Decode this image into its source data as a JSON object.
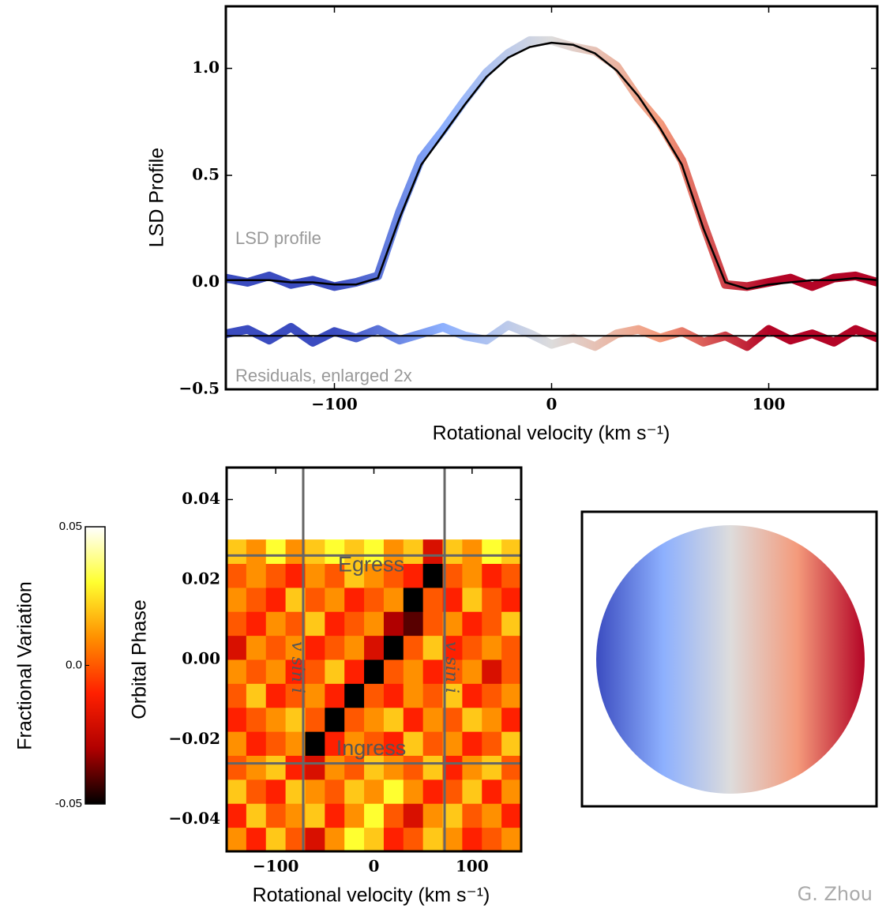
{
  "chart_data": [
    {
      "type": "line",
      "ylabel": "LSD Profile",
      "xlabel": "Rotational velocity (km s⁻¹)",
      "annotations": [
        "LSD profile",
        "Residuals, enlarged 2x"
      ],
      "x": [
        -150,
        -140,
        -130,
        -120,
        -110,
        -100,
        -90,
        -80,
        -70,
        -60,
        -50,
        -40,
        -30,
        -20,
        -10,
        0,
        10,
        20,
        30,
        40,
        50,
        60,
        70,
        80,
        90,
        100,
        110,
        120,
        130,
        140,
        150
      ],
      "series": [
        {
          "gradient": [
            "#3b4cc0",
            "#3b4cc0",
            "#8db0fe",
            "#dddcdc",
            "#f49a7b",
            "#b40426",
            "#b40426"
          ],
          "values": [
            0.02,
            0.0,
            0.03,
            -0.01,
            0.01,
            -0.02,
            0.0,
            0.03,
            0.33,
            0.58,
            0.71,
            0.85,
            0.98,
            1.07,
            1.13,
            1.13,
            1.1,
            1.08,
            1.01,
            0.86,
            0.74,
            0.57,
            0.27,
            -0.01,
            -0.02,
            0.0,
            0.02,
            -0.02,
            0.02,
            0.03,
            0.0
          ]
        },
        {
          "gradient": [
            "#3b4cc0",
            "#3b4cc0",
            "#8db0fe",
            "#dddcdc",
            "#f49a7b",
            "#b40426",
            "#b40426"
          ],
          "values": [
            -0.24,
            -0.22,
            -0.27,
            -0.21,
            -0.28,
            -0.23,
            -0.26,
            -0.22,
            -0.27,
            -0.24,
            -0.21,
            -0.25,
            -0.27,
            -0.2,
            -0.24,
            -0.29,
            -0.26,
            -0.3,
            -0.24,
            -0.22,
            -0.26,
            -0.23,
            -0.28,
            -0.25,
            -0.3,
            -0.22,
            -0.27,
            -0.24,
            -0.28,
            -0.22,
            -0.26
          ]
        },
        {
          "color": "#000000",
          "values": [
            0.01,
            0.01,
            0.01,
            0.0,
            0.0,
            -0.01,
            -0.01,
            0.02,
            0.3,
            0.55,
            0.69,
            0.83,
            0.96,
            1.05,
            1.1,
            1.12,
            1.11,
            1.07,
            0.99,
            0.87,
            0.72,
            0.55,
            0.25,
            0.0,
            -0.03,
            -0.01,
            0.0,
            0.01,
            0.01,
            0.02,
            0.01
          ]
        }
      ],
      "hline": -0.25,
      "xlim": [
        -150,
        150
      ],
      "ylim": [
        -0.5,
        1.29
      ],
      "xticks": [
        {
          "value": -100,
          "label": "−100"
        },
        0,
        100
      ],
      "yticks": [
        {
          "value": -0.5,
          "label": "−0.5"
        },
        {
          "value": 0,
          "label": "0.0"
        },
        {
          "value": 0.5,
          "label": "0.5"
        },
        {
          "value": 1,
          "label": "1.0"
        }
      ]
    },
    {
      "type": "heatmap",
      "ylabel": "Orbital Phase",
      "xlabel": "Rotational velocity (km s⁻¹)",
      "x_edges": [
        -150,
        -130,
        -110,
        -90,
        -70,
        -50,
        -30,
        -10,
        10,
        30,
        50,
        70,
        90,
        110,
        130,
        150
      ],
      "y_edges": [
        -0.048,
        -0.042,
        -0.036,
        -0.03,
        -0.024,
        -0.018,
        -0.012,
        -0.006,
        0.0,
        0.006,
        0.012,
        0.018,
        0.024,
        0.03
      ],
      "values": [
        [
          0.01,
          -0.01,
          0.02,
          0.0,
          -0.02,
          0.01,
          0.03,
          0.02,
          -0.01,
          0.0,
          0.02,
          0.01,
          -0.01,
          0.0,
          0.01
        ],
        [
          -0.01,
          0.02,
          0.0,
          0.01,
          0.02,
          -0.01,
          0.01,
          0.03,
          0.0,
          -0.02,
          0.01,
          0.02,
          0.0,
          0.01,
          -0.01
        ],
        [
          0.02,
          0.0,
          -0.01,
          0.02,
          0.01,
          0.0,
          0.02,
          0.01,
          0.03,
          0.01,
          -0.01,
          0.0,
          0.02,
          -0.01,
          0.01
        ],
        [
          0.0,
          0.01,
          0.02,
          -0.01,
          -0.02,
          0.01,
          0.0,
          0.02,
          0.01,
          0.0,
          0.02,
          -0.01,
          0.01,
          0.02,
          0.0
        ],
        [
          0.01,
          -0.01,
          0.0,
          0.01,
          -0.05,
          -0.01,
          0.01,
          0.0,
          -0.01,
          0.02,
          0.0,
          0.01,
          -0.01,
          0.0,
          0.02
        ],
        [
          -0.01,
          0.0,
          0.01,
          0.02,
          0.0,
          -0.05,
          0.0,
          0.01,
          0.02,
          -0.01,
          0.01,
          0.0,
          0.02,
          0.01,
          -0.01
        ],
        [
          0.0,
          0.02,
          -0.01,
          0.0,
          0.01,
          -0.01,
          -0.05,
          0.0,
          -0.01,
          0.01,
          0.0,
          0.02,
          -0.01,
          0.0,
          0.01
        ],
        [
          0.01,
          0.0,
          0.01,
          -0.01,
          0.0,
          0.02,
          -0.01,
          -0.05,
          0.0,
          0.01,
          -0.01,
          0.0,
          0.01,
          -0.02,
          0.0
        ],
        [
          -0.02,
          0.01,
          0.0,
          0.01,
          -0.01,
          0.0,
          0.01,
          -0.02,
          -0.05,
          0.0,
          0.02,
          -0.01,
          0.0,
          0.01,
          0.0
        ],
        [
          0.0,
          -0.01,
          0.01,
          0.0,
          0.02,
          -0.01,
          0.0,
          0.01,
          -0.03,
          -0.04,
          0.0,
          0.01,
          -0.01,
          0.0,
          0.02
        ],
        [
          0.01,
          0.0,
          -0.01,
          0.02,
          0.0,
          0.01,
          -0.01,
          0.0,
          0.01,
          -0.05,
          0.0,
          -0.01,
          0.02,
          0.0,
          -0.01
        ],
        [
          0.0,
          0.01,
          0.0,
          -0.01,
          0.01,
          0.0,
          0.02,
          0.01,
          0.0,
          -0.01,
          -0.05,
          0.0,
          0.01,
          -0.01,
          0.0
        ],
        [
          0.02,
          0.01,
          0.03,
          0.01,
          0.02,
          0.03,
          0.02,
          0.03,
          0.01,
          0.02,
          -0.02,
          0.02,
          0.01,
          0.03,
          0.02
        ]
      ],
      "colormap": [
        "#000000",
        "#b00000",
        "#ff2000",
        "#ff9000",
        "#ffff30",
        "#ffffff"
      ],
      "clim": [
        -0.05,
        0.05
      ],
      "cticks": [
        -0.05,
        {
          "value": 0,
          "label": "0.0"
        },
        0.05
      ],
      "clabel": "Fractional Variation",
      "vlines": [
        -72,
        72
      ],
      "vline_label": "v sin i",
      "hlines": [
        -0.026,
        0.026
      ],
      "hline_labels": [
        "Ingress",
        "Egress"
      ],
      "xlim": [
        -150,
        150
      ],
      "ylim": [
        -0.048,
        0.048
      ],
      "xticks": [
        {
          "value": -100,
          "label": "−100"
        },
        0,
        100
      ],
      "yticks": [
        {
          "value": -0.04,
          "label": "−0.04"
        },
        {
          "value": -0.02,
          "label": "−0.02"
        },
        {
          "value": 0,
          "label": "0.00"
        },
        {
          "value": 0.02,
          "label": "0.02"
        },
        {
          "value": 0.04,
          "label": "0.04"
        }
      ]
    }
  ],
  "credit": "G. Zhou"
}
